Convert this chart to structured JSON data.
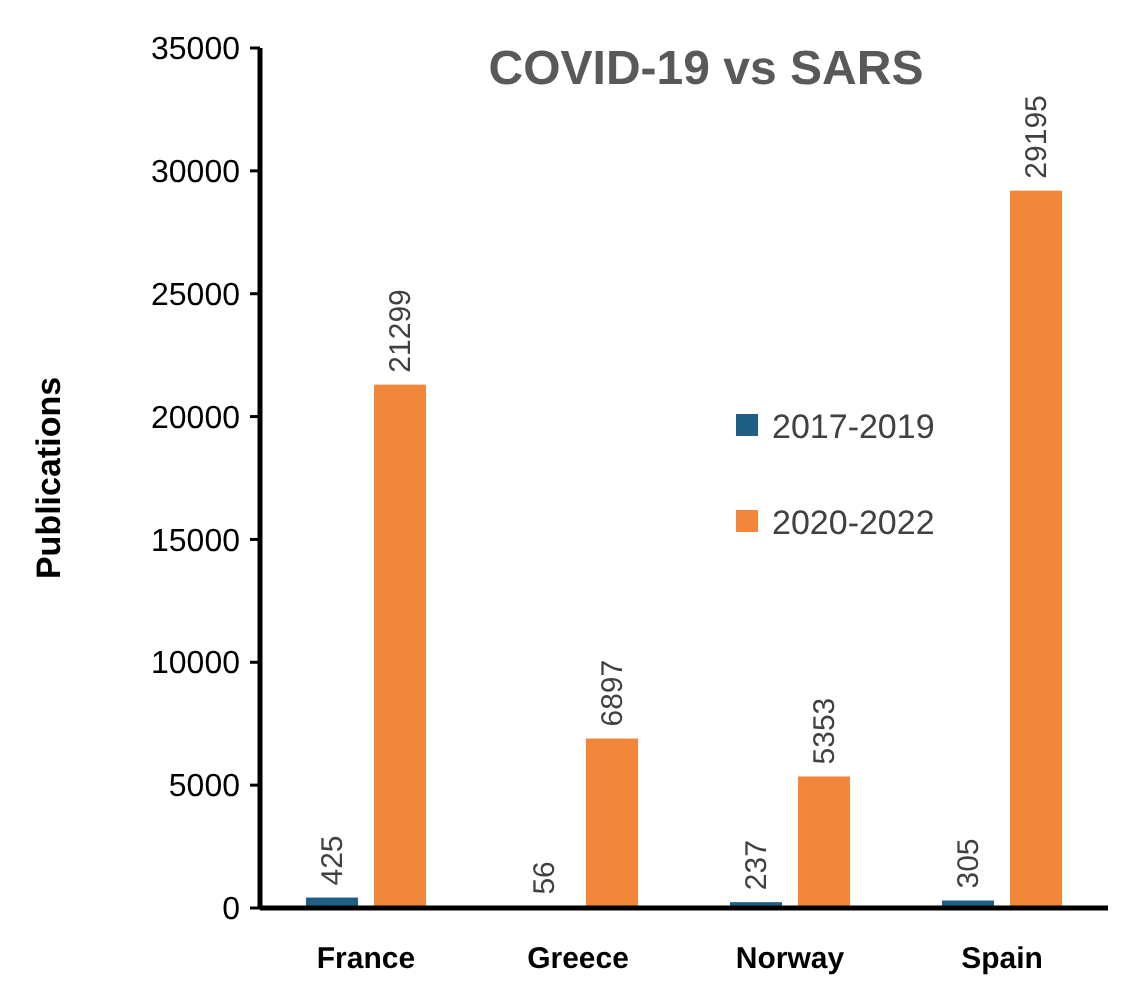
{
  "chart_data": {
    "type": "bar",
    "title": "COVID-19 vs SARS",
    "ylabel": "Publications",
    "categories": [
      "France",
      "Greece",
      "Norway",
      "Spain"
    ],
    "series": [
      {
        "name": "2017-2019",
        "color": "#1f5f86",
        "values": [
          425,
          56,
          237,
          305
        ]
      },
      {
        "name": "2020-2022",
        "color": "#f0873a",
        "values": [
          21299,
          6897,
          5353,
          29195
        ]
      }
    ],
    "ylim": [
      0,
      35000
    ],
    "yticks": [
      0,
      5000,
      10000,
      15000,
      20000,
      25000,
      30000,
      35000
    ],
    "data_labels": true,
    "legend": "right",
    "grid": false
  }
}
